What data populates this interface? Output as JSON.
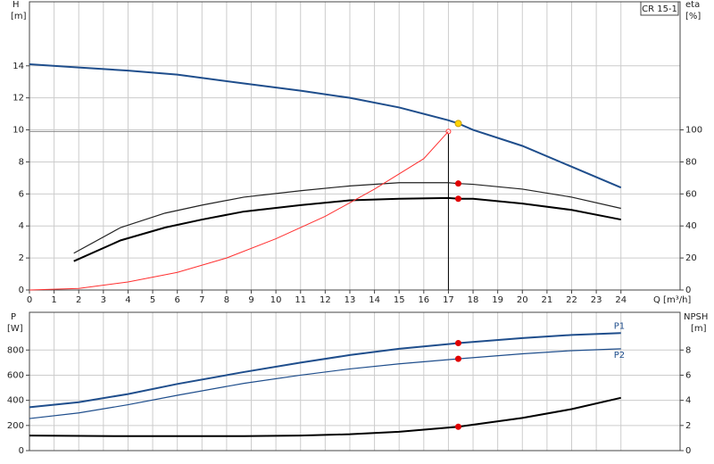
{
  "chart_data": [
    {
      "type": "line",
      "y_label": "H",
      "y_unit": "[m]",
      "y2_label": "eta",
      "y2_unit": "[%]",
      "x_label": "Q [m³/h]",
      "box_label": "CR 15-1",
      "xlim": [
        0,
        26.4
      ],
      "xticks": [
        0,
        1,
        2,
        3,
        4,
        5,
        6,
        7,
        8,
        9,
        10,
        11,
        12,
        13,
        14,
        15,
        16,
        17,
        18,
        19,
        20,
        21,
        22,
        23,
        24
      ],
      "ylim": [
        0,
        18
      ],
      "yticks": [
        0,
        2,
        4,
        6,
        8,
        10,
        12,
        14
      ],
      "y2lim": [
        0,
        180
      ],
      "y2ticks": [
        0,
        20,
        40,
        60,
        80,
        100
      ],
      "grid": true,
      "series": [
        {
          "color": "#1f4e8c",
          "width": 2,
          "x": [
            0,
            2,
            4,
            6,
            8.7,
            11,
            13,
            15,
            17,
            17.4,
            18,
            20,
            22,
            24
          ],
          "values": [
            14.1,
            13.9,
            13.7,
            13.45,
            12.9,
            12.45,
            12.0,
            11.4,
            10.6,
            10.4,
            10.0,
            9.0,
            7.7,
            6.4
          ]
        },
        {
          "color": "#222222",
          "width": 1.2,
          "axis": "y2",
          "x": [
            1.8,
            3.7,
            5.5,
            7,
            8.7,
            11,
            13,
            15,
            17,
            17.4,
            18,
            20,
            22,
            24
          ],
          "values": [
            23,
            39,
            48,
            53,
            58,
            62,
            65,
            67,
            67,
            66.5,
            66,
            63,
            58,
            51
          ]
        },
        {
          "color": "#000000",
          "width": 2,
          "axis": "y2",
          "x": [
            1.8,
            3.7,
            5.5,
            7,
            8.7,
            11,
            13,
            15,
            17,
            17.4,
            18,
            20,
            22,
            24
          ],
          "values": [
            18,
            31,
            39,
            44,
            49,
            53,
            56,
            57,
            57.5,
            57,
            57,
            54,
            50,
            44
          ]
        },
        {
          "color": "#ff3030",
          "width": 1,
          "x": [
            0,
            2,
            4,
            6,
            8,
            10,
            12,
            14,
            16,
            17
          ],
          "values": [
            0,
            0.1,
            0.5,
            1.1,
            2.0,
            3.2,
            4.6,
            6.3,
            8.2,
            9.9
          ]
        }
      ],
      "reference": {
        "x": 17,
        "y": 9.9
      },
      "markers": [
        {
          "x": 17.4,
          "y": 10.4,
          "color": "#ffd400"
        },
        {
          "x": 17.4,
          "y": 66.5,
          "axis": "y2",
          "color": "#e00000"
        },
        {
          "x": 17.4,
          "y": 57,
          "axis": "y2",
          "color": "#e00000"
        }
      ]
    },
    {
      "type": "line",
      "y_label": "P",
      "y_unit": "[W]",
      "y2_label": "NPSH",
      "y2_unit": "[m]",
      "xlim": [
        0,
        26.4
      ],
      "ylim": [
        0,
        1100
      ],
      "yticks": [
        0,
        200,
        400,
        600,
        800
      ],
      "y2lim": [
        0,
        11
      ],
      "y2ticks": [
        0,
        2,
        4,
        6,
        8
      ],
      "grid": true,
      "series": [
        {
          "name": "P1",
          "color": "#1f4e8c",
          "width": 2,
          "x": [
            0,
            2,
            4,
            6,
            8.7,
            11,
            13,
            15,
            17.4,
            20,
            22,
            24
          ],
          "values": [
            345,
            385,
            450,
            530,
            625,
            700,
            760,
            810,
            855,
            895,
            920,
            935
          ]
        },
        {
          "name": "P2",
          "color": "#1f4e8c",
          "width": 1.2,
          "x": [
            0,
            2,
            4,
            6,
            8.7,
            11,
            13,
            15,
            17.4,
            20,
            22,
            24
          ],
          "values": [
            255,
            300,
            365,
            440,
            535,
            600,
            650,
            690,
            730,
            770,
            795,
            810
          ]
        },
        {
          "color": "#000000",
          "width": 2,
          "axis": "y2",
          "x": [
            0,
            4,
            8.7,
            11,
            13,
            15,
            17.4,
            20,
            22,
            24
          ],
          "values": [
            1.2,
            1.15,
            1.15,
            1.2,
            1.3,
            1.5,
            1.9,
            2.6,
            3.3,
            4.2
          ]
        }
      ],
      "markers": [
        {
          "x": 17.4,
          "y": 855,
          "color": "#e00000"
        },
        {
          "x": 17.4,
          "y": 730,
          "color": "#e00000"
        },
        {
          "x": 17.4,
          "y": 1.9,
          "axis": "y2",
          "color": "#e00000"
        }
      ]
    }
  ]
}
